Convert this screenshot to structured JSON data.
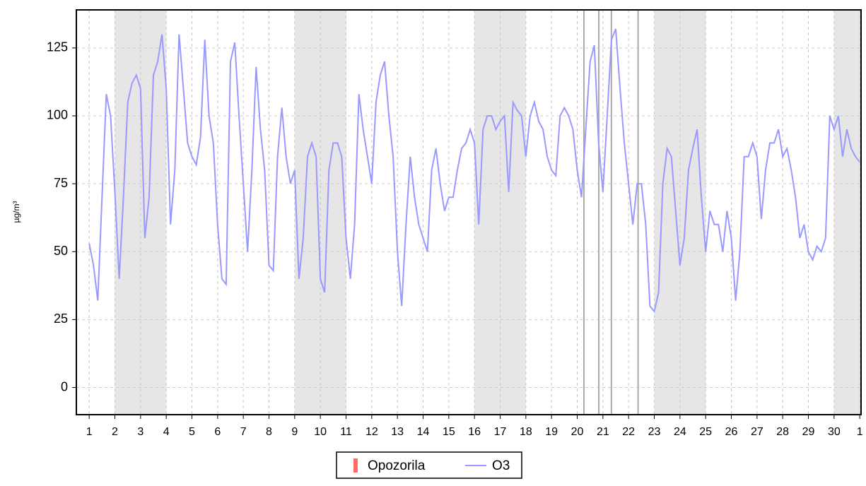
{
  "chart_data": {
    "type": "line",
    "ylabel": "µg/m³",
    "xlim": [
      0.5,
      31.05
    ],
    "ylim": [
      -10,
      139
    ],
    "xticks": [
      1,
      2,
      3,
      4,
      5,
      6,
      7,
      8,
      9,
      10,
      11,
      12,
      13,
      14,
      15,
      16,
      17,
      18,
      19,
      20,
      21,
      22,
      23,
      24,
      25,
      26,
      27,
      28,
      29,
      30,
      {
        "value": 31,
        "label": "1"
      }
    ],
    "yticks": [
      0,
      25,
      50,
      75,
      100,
      125
    ],
    "grid": true,
    "shaded": [
      [
        2,
        4
      ],
      [
        9,
        11
      ],
      [
        16,
        18
      ],
      [
        23,
        25
      ],
      [
        30,
        32
      ]
    ],
    "shade_color": "#e6e6e6",
    "vlines": {
      "color": "#aaaaaa",
      "x": [
        20.26,
        20.84,
        21.33,
        22.37
      ]
    },
    "warning_legend": {
      "name": "Opozorila",
      "color": "#ff6b6b"
    },
    "x": [
      1,
      1.167,
      1.333,
      1.5,
      1.667,
      1.833,
      2,
      2.167,
      2.333,
      2.5,
      2.667,
      2.833,
      3,
      3.167,
      3.333,
      3.5,
      3.667,
      3.833,
      4,
      4.167,
      4.333,
      4.5,
      4.667,
      4.833,
      5,
      5.167,
      5.333,
      5.5,
      5.667,
      5.833,
      6,
      6.167,
      6.333,
      6.5,
      6.667,
      6.833,
      7,
      7.167,
      7.333,
      7.5,
      7.667,
      7.833,
      8,
      8.167,
      8.333,
      8.5,
      8.667,
      8.833,
      9,
      9.167,
      9.333,
      9.5,
      9.667,
      9.833,
      10,
      10.167,
      10.333,
      10.5,
      10.667,
      10.833,
      11,
      11.167,
      11.333,
      11.5,
      11.667,
      11.833,
      12,
      12.167,
      12.333,
      12.5,
      12.667,
      12.833,
      13,
      13.167,
      13.333,
      13.5,
      13.667,
      13.833,
      14,
      14.167,
      14.333,
      14.5,
      14.667,
      14.833,
      15,
      15.167,
      15.333,
      15.5,
      15.667,
      15.833,
      16,
      16.167,
      16.333,
      16.5,
      16.667,
      16.833,
      17,
      17.167,
      17.333,
      17.5,
      17.667,
      17.833,
      18,
      18.167,
      18.333,
      18.5,
      18.667,
      18.833,
      19,
      19.167,
      19.333,
      19.5,
      19.667,
      19.833,
      20,
      20.167,
      20.333,
      20.5,
      20.667,
      20.833,
      21,
      21.167,
      21.333,
      21.5,
      21.667,
      21.833,
      22,
      22.167,
      22.333,
      22.5,
      22.667,
      22.833,
      23,
      23.167,
      23.333,
      23.5,
      23.667,
      23.833,
      24,
      24.167,
      24.333,
      24.5,
      24.667,
      24.833,
      25,
      25.167,
      25.333,
      25.5,
      25.667,
      25.833,
      26,
      26.167,
      26.333,
      26.5,
      26.667,
      26.833,
      27,
      27.167,
      27.333,
      27.5,
      27.667,
      27.833,
      28,
      28.167,
      28.333,
      28.5,
      28.667,
      28.833,
      29,
      29.167,
      29.333,
      29.5,
      29.667,
      29.833,
      30,
      30.167,
      30.333,
      30.5,
      30.667,
      30.833,
      31
    ],
    "series": [
      {
        "name": "O3",
        "color": "#9999ff",
        "values": [
          53,
          45,
          32,
          70,
          108,
          100,
          72,
          40,
          70,
          105,
          112,
          115,
          110,
          55,
          70,
          115,
          120,
          130,
          110,
          60,
          80,
          130,
          110,
          90,
          85,
          82,
          92,
          128,
          100,
          90,
          60,
          40,
          38,
          120,
          127,
          100,
          75,
          50,
          80,
          118,
          95,
          80,
          45,
          43,
          85,
          103,
          85,
          75,
          80,
          40,
          55,
          85,
          90,
          85,
          40,
          35,
          80,
          90,
          90,
          85,
          55,
          40,
          60,
          108,
          95,
          85,
          75,
          105,
          115,
          120,
          100,
          85,
          50,
          30,
          60,
          85,
          70,
          60,
          55,
          50,
          80,
          88,
          75,
          65,
          70,
          70,
          80,
          88,
          90,
          95,
          90,
          60,
          95,
          100,
          100,
          95,
          98,
          100,
          72,
          105,
          102,
          100,
          85,
          100,
          105,
          98,
          95,
          85,
          80,
          78,
          100,
          103,
          100,
          95,
          80,
          70,
          95,
          120,
          126,
          90,
          72,
          100,
          128,
          132,
          110,
          90,
          75,
          60,
          75,
          75,
          60,
          30,
          28,
          35,
          75,
          88,
          85,
          65,
          45,
          55,
          80,
          88,
          95,
          70,
          50,
          65,
          60,
          60,
          50,
          65,
          55,
          32,
          50,
          85,
          85,
          90,
          85,
          62,
          80,
          90,
          90,
          95,
          85,
          88,
          80,
          70,
          55,
          60,
          50,
          47,
          52,
          50,
          55,
          100,
          95,
          100,
          85,
          95,
          88,
          85,
          83
        ]
      }
    ]
  }
}
